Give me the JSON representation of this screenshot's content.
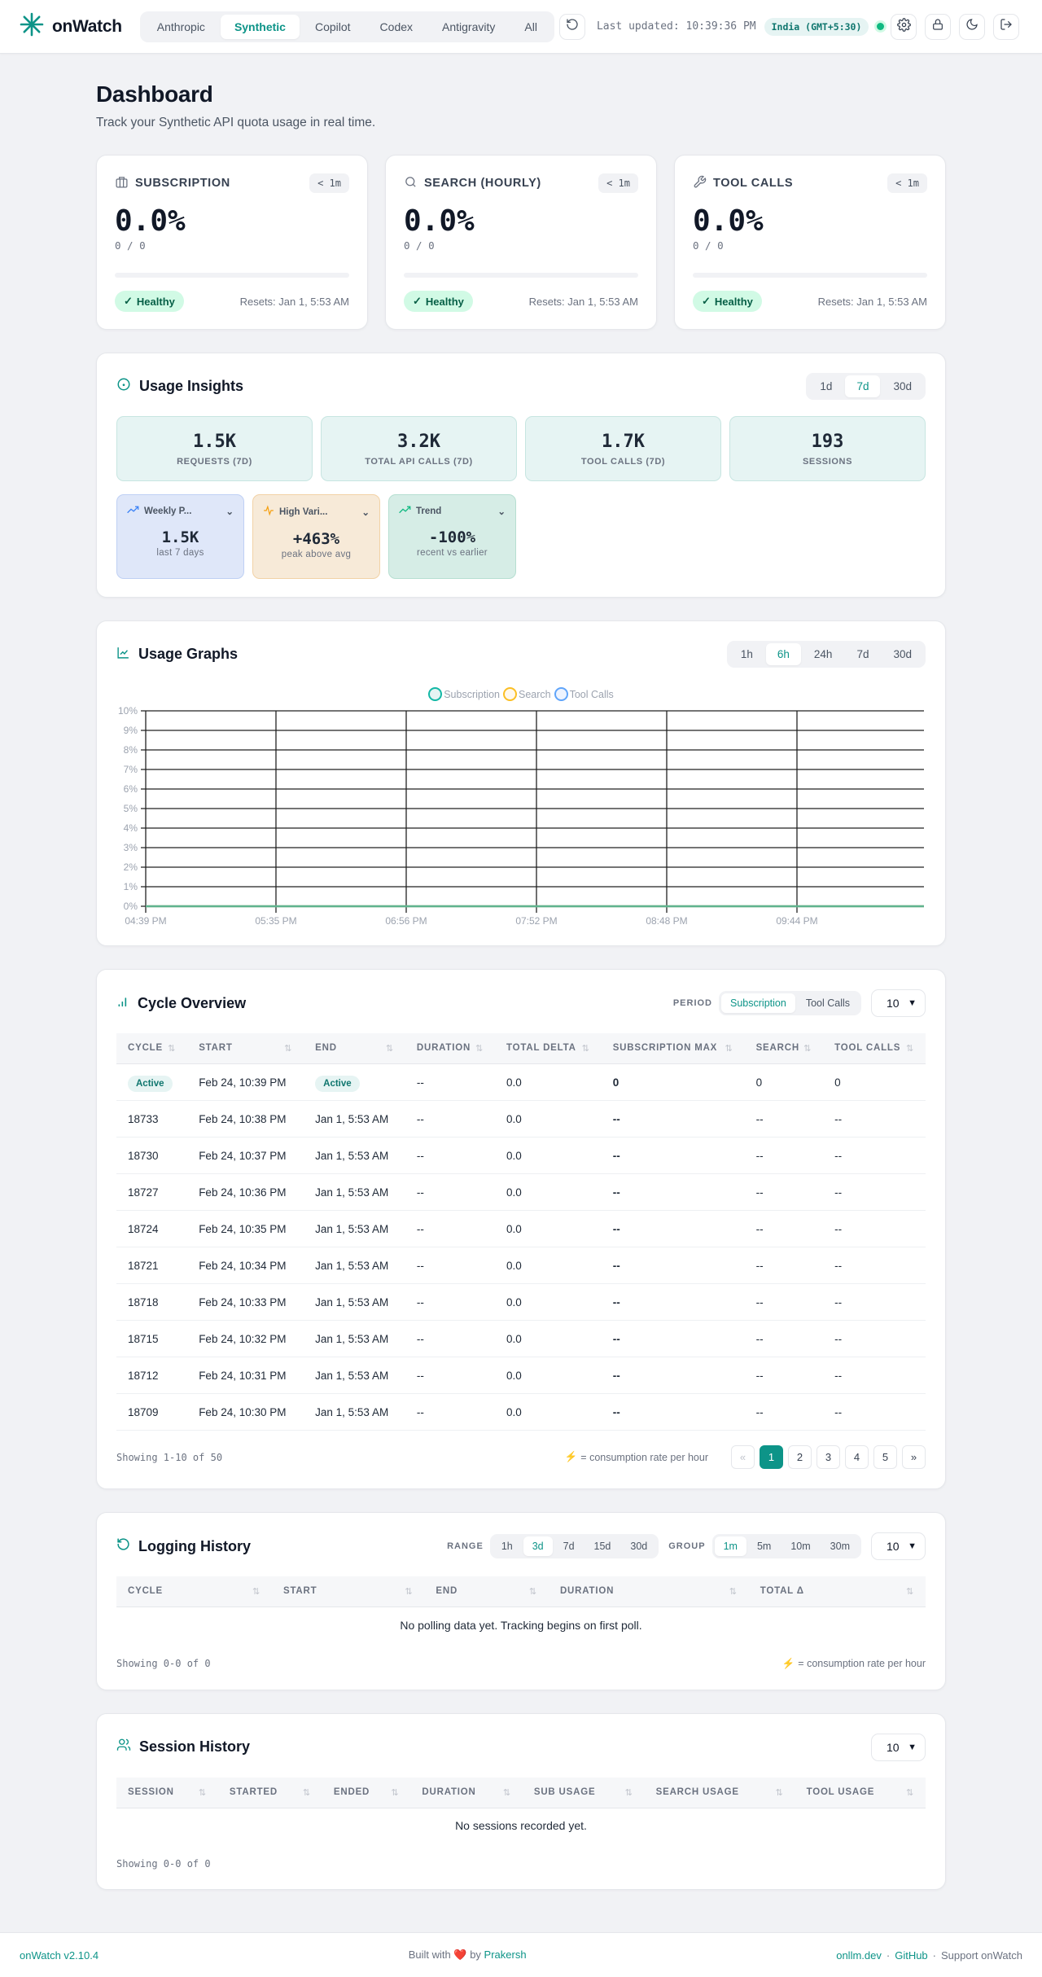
{
  "header": {
    "brand": "onWatch",
    "provider_tabs": [
      {
        "label": "Anthropic",
        "active": false
      },
      {
        "label": "Synthetic",
        "active": true
      },
      {
        "label": "Copilot",
        "active": false
      },
      {
        "label": "Codex",
        "active": false
      },
      {
        "label": "Antigravity",
        "active": false
      },
      {
        "label": "All",
        "active": false
      }
    ],
    "last_updated": "Last updated: 10:39:36 PM",
    "timezone": "India (GMT+5:30)",
    "actions": [
      "refresh-icon",
      "settings-icon",
      "lock-icon",
      "dark-mode-icon",
      "logout-icon"
    ]
  },
  "page": {
    "title": "Dashboard",
    "subtitle": "Track your Synthetic API quota usage in real time."
  },
  "quota_cards": [
    {
      "title": "SUBSCRIPTION",
      "icon": "briefcase-icon",
      "age": "< 1m",
      "percent": "0.0%",
      "ratio": "0 / 0",
      "status": "Healthy",
      "resets": "Resets: Jan 1, 5:53 AM"
    },
    {
      "title": "SEARCH (HOURLY)",
      "icon": "search-icon",
      "age": "< 1m",
      "percent": "0.0%",
      "ratio": "0 / 0",
      "status": "Healthy",
      "resets": "Resets: Jan 1, 5:53 AM"
    },
    {
      "title": "TOOL CALLS",
      "icon": "wrench-icon",
      "age": "< 1m",
      "percent": "0.0%",
      "ratio": "0 / 0",
      "status": "Healthy",
      "resets": "Resets: Jan 1, 5:53 AM"
    }
  ],
  "insights": {
    "title": "Usage Insights",
    "ranges": [
      {
        "label": "1d",
        "active": false
      },
      {
        "label": "7d",
        "active": true
      },
      {
        "label": "30d",
        "active": false
      }
    ],
    "stats": [
      {
        "value": "1.5K",
        "label": "REQUESTS (7D)"
      },
      {
        "value": "3.2K",
        "label": "TOTAL API CALLS (7D)"
      },
      {
        "value": "1.7K",
        "label": "TOOL CALLS (7D)"
      },
      {
        "value": "193",
        "label": "SESSIONS"
      }
    ],
    "cards": [
      {
        "title": "Weekly P...",
        "value": "1.5K",
        "sub": "last 7 days",
        "color": "#3b82f6"
      },
      {
        "title": "High Vari...",
        "value": "+463%",
        "sub": "peak above avg",
        "color": "#f59e0b"
      },
      {
        "title": "Trend",
        "value": "-100%",
        "sub": "recent vs earlier",
        "color": "#10b981"
      }
    ]
  },
  "graphs": {
    "title": "Usage Graphs",
    "ranges": [
      {
        "label": "1h",
        "active": false
      },
      {
        "label": "6h",
        "active": true
      },
      {
        "label": "24h",
        "active": false
      },
      {
        "label": "7d",
        "active": false
      },
      {
        "label": "30d",
        "active": false
      }
    ],
    "legend": [
      {
        "label": "Subscription",
        "color": "#14b8a6"
      },
      {
        "label": "Search",
        "color": "#fbbf24"
      },
      {
        "label": "Tool Calls",
        "color": "#60a5fa"
      }
    ]
  },
  "chart_data": {
    "type": "line",
    "title": "Usage Graphs",
    "x": [
      "04:39 PM",
      "05:35 PM",
      "06:56 PM",
      "07:52 PM",
      "08:48 PM",
      "09:44 PM"
    ],
    "series": [
      {
        "name": "Subscription",
        "values": [
          0,
          0,
          0,
          0,
          0,
          0
        ]
      },
      {
        "name": "Search",
        "values": [
          0,
          0,
          0,
          0,
          0,
          0
        ]
      },
      {
        "name": "Tool Calls",
        "values": [
          0,
          0,
          0,
          0,
          0,
          0
        ]
      }
    ],
    "yticks": [
      "0%",
      "1%",
      "2%",
      "3%",
      "4%",
      "5%",
      "6%",
      "7%",
      "8%",
      "9%",
      "10%"
    ],
    "ylim": [
      0,
      10
    ],
    "xlabel": "",
    "ylabel": "",
    "grid": true,
    "legend_position": "top"
  },
  "cycles": {
    "title": "Cycle Overview",
    "period_label": "PERIOD",
    "period_options": [
      {
        "label": "Subscription",
        "active": true
      },
      {
        "label": "Tool Calls",
        "active": false
      }
    ],
    "rows_per_page": "10",
    "columns": [
      "CYCLE",
      "START",
      "END",
      "DURATION",
      "TOTAL DELTA",
      "SUBSCRIPTION MAX",
      "SEARCH",
      "TOOL CALLS"
    ],
    "rows": [
      {
        "cycle": "Active",
        "start": "Feb 24, 10:39 PM",
        "end": "Active",
        "duration": "--",
        "total_delta": "0.0",
        "sub_max": "0",
        "search": "0",
        "tool_calls": "0"
      },
      {
        "cycle": "18733",
        "start": "Feb 24, 10:38 PM",
        "end": "Jan 1, 5:53 AM",
        "duration": "--",
        "total_delta": "0.0",
        "sub_max": "--",
        "search": "--",
        "tool_calls": "--"
      },
      {
        "cycle": "18730",
        "start": "Feb 24, 10:37 PM",
        "end": "Jan 1, 5:53 AM",
        "duration": "--",
        "total_delta": "0.0",
        "sub_max": "--",
        "search": "--",
        "tool_calls": "--"
      },
      {
        "cycle": "18727",
        "start": "Feb 24, 10:36 PM",
        "end": "Jan 1, 5:53 AM",
        "duration": "--",
        "total_delta": "0.0",
        "sub_max": "--",
        "search": "--",
        "tool_calls": "--"
      },
      {
        "cycle": "18724",
        "start": "Feb 24, 10:35 PM",
        "end": "Jan 1, 5:53 AM",
        "duration": "--",
        "total_delta": "0.0",
        "sub_max": "--",
        "search": "--",
        "tool_calls": "--"
      },
      {
        "cycle": "18721",
        "start": "Feb 24, 10:34 PM",
        "end": "Jan 1, 5:53 AM",
        "duration": "--",
        "total_delta": "0.0",
        "sub_max": "--",
        "search": "--",
        "tool_calls": "--"
      },
      {
        "cycle": "18718",
        "start": "Feb 24, 10:33 PM",
        "end": "Jan 1, 5:53 AM",
        "duration": "--",
        "total_delta": "0.0",
        "sub_max": "--",
        "search": "--",
        "tool_calls": "--"
      },
      {
        "cycle": "18715",
        "start": "Feb 24, 10:32 PM",
        "end": "Jan 1, 5:53 AM",
        "duration": "--",
        "total_delta": "0.0",
        "sub_max": "--",
        "search": "--",
        "tool_calls": "--"
      },
      {
        "cycle": "18712",
        "start": "Feb 24, 10:31 PM",
        "end": "Jan 1, 5:53 AM",
        "duration": "--",
        "total_delta": "0.0",
        "sub_max": "--",
        "search": "--",
        "tool_calls": "--"
      },
      {
        "cycle": "18709",
        "start": "Feb 24, 10:30 PM",
        "end": "Jan 1, 5:53 AM",
        "duration": "--",
        "total_delta": "0.0",
        "sub_max": "--",
        "search": "--",
        "tool_calls": "--"
      }
    ],
    "showing": "Showing 1-10 of 50",
    "rate_note": "= consumption rate per hour",
    "pages": [
      "1",
      "2",
      "3",
      "4",
      "5"
    ],
    "prev": "«",
    "next": "»"
  },
  "logging": {
    "title": "Logging History",
    "range_label": "RANGE",
    "ranges": [
      {
        "label": "1h",
        "active": false
      },
      {
        "label": "3d",
        "active": true
      },
      {
        "label": "7d",
        "active": false
      },
      {
        "label": "15d",
        "active": false
      },
      {
        "label": "30d",
        "active": false
      }
    ],
    "group_label": "GROUP",
    "groups": [
      {
        "label": "1m",
        "active": true
      },
      {
        "label": "5m",
        "active": false
      },
      {
        "label": "10m",
        "active": false
      },
      {
        "label": "30m",
        "active": false
      }
    ],
    "rows_per_page": "10",
    "columns": [
      "CYCLE",
      "START",
      "END",
      "DURATION",
      "TOTAL Δ"
    ],
    "empty": "No polling data yet. Tracking begins on first poll.",
    "showing": "Showing 0-0 of 0",
    "rate_note": "= consumption rate per hour"
  },
  "sessions": {
    "title": "Session History",
    "rows_per_page": "10",
    "columns": [
      "SESSION",
      "STARTED",
      "ENDED",
      "DURATION",
      "SUB USAGE",
      "SEARCH USAGE",
      "TOOL USAGE"
    ],
    "empty": "No sessions recorded yet.",
    "showing": "Showing 0-0 of 0"
  },
  "footer": {
    "version": "onWatch v2.10.4",
    "built_with": "Built with",
    "by": "by",
    "author": "Prakersh",
    "links": [
      "onllm.dev",
      "GitHub",
      "Support onWatch"
    ],
    "separator": "·"
  },
  "colors": {
    "accent": "#0d9488",
    "healthy_bg": "#d1fae5",
    "healthy_text": "#065f46"
  }
}
